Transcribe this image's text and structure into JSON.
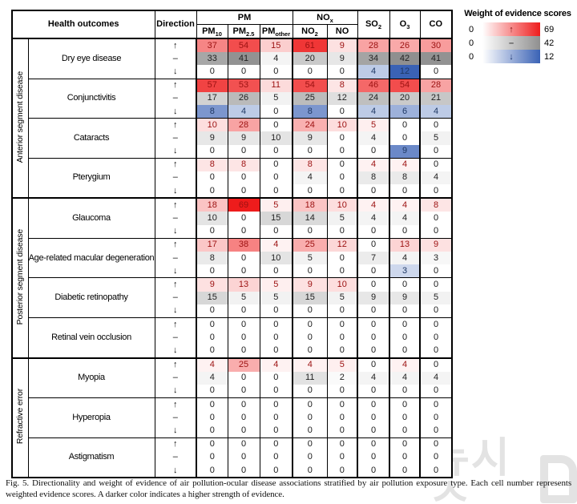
{
  "legend": {
    "title": "Weight of evidence scores"
  },
  "caption": {
    "text": "Fig. 5. Directionality and weight of evidence of air pollution-ocular disease associations stratified by air pollution exposure type. Each cell number represents weighted evidence scores. A darker color indicates a higher strength of evidence."
  },
  "watermark": {
    "text": "뉴시스"
  },
  "table": {
    "header": {
      "outcomes": "Health outcomes",
      "direction": "Direction",
      "groups": [
        {
          "base": "PM",
          "sub": "",
          "span": 3
        },
        {
          "base": "NO",
          "sub": "x",
          "span": 2
        }
      ],
      "subcols": [
        {
          "base": "PM",
          "sub": "10"
        },
        {
          "base": "PM",
          "sub": "2.5"
        },
        {
          "base": "PM",
          "sub": "other"
        },
        {
          "base": "NO",
          "sub": "2"
        },
        {
          "base": "NO",
          "sub": ""
        }
      ],
      "singles": [
        {
          "base": "SO",
          "sub": "2"
        },
        {
          "base": "O",
          "sub": "3"
        },
        {
          "base": "CO",
          "sub": ""
        }
      ]
    }
  },
  "chart_data": {
    "type": "heatmap",
    "title": "Directionality and weight of evidence of air pollution-ocular disease associations stratified by air pollution exposure type",
    "columns": [
      "PM10",
      "PM2.5",
      "PMother",
      "NO2",
      "NO",
      "SO2",
      "O3",
      "CO"
    ],
    "directions": [
      {
        "id": "up",
        "symbol": "↑",
        "min": 0,
        "max": 69,
        "color": "#ee1c1c",
        "text_color": "#9c1111",
        "symbol_color": "#7c0d0d"
      },
      {
        "id": "mid",
        "symbol": "–",
        "min": 0,
        "max": 42,
        "color": "#8f8f8f",
        "text_color": "#222222",
        "symbol_color": "#444444"
      },
      {
        "id": "down",
        "symbol": "↓",
        "min": 0,
        "max": 12,
        "color": "#3a62b5",
        "text_color": "#1f3864",
        "symbol_color": "#17306b"
      }
    ],
    "groups": [
      {
        "label": "Anterior segment disease",
        "diseases": [
          {
            "name": "Dry eye disease",
            "values": {
              "up": [
                37,
                54,
                15,
                61,
                9,
                28,
                26,
                30
              ],
              "mid": [
                33,
                41,
                4,
                20,
                9,
                34,
                42,
                41
              ],
              "down": [
                0,
                0,
                0,
                0,
                0,
                4,
                12,
                0
              ]
            }
          },
          {
            "name": "Conjunctivitis",
            "values": {
              "up": [
                57,
                53,
                11,
                54,
                8,
                46,
                54,
                28
              ],
              "mid": [
                17,
                26,
                5,
                25,
                12,
                24,
                20,
                21
              ],
              "down": [
                8,
                4,
                0,
                8,
                0,
                4,
                6,
                4
              ]
            }
          },
          {
            "name": "Cataracts",
            "values": {
              "up": [
                10,
                28,
                0,
                24,
                10,
                5,
                0,
                0
              ],
              "mid": [
                9,
                9,
                10,
                9,
                0,
                4,
                0,
                5
              ],
              "down": [
                0,
                0,
                0,
                0,
                0,
                0,
                9,
                0
              ]
            }
          },
          {
            "name": "Pterygium",
            "values": {
              "up": [
                8,
                8,
                0,
                8,
                0,
                4,
                4,
                0
              ],
              "mid": [
                0,
                0,
                0,
                4,
                0,
                8,
                8,
                4
              ],
              "down": [
                0,
                0,
                0,
                0,
                0,
                0,
                0,
                0
              ]
            }
          }
        ]
      },
      {
        "label": "Posterior segment disease",
        "diseases": [
          {
            "name": "Glaucoma",
            "values": {
              "up": [
                18,
                69,
                5,
                18,
                10,
                4,
                4,
                8
              ],
              "mid": [
                10,
                0,
                15,
                14,
                5,
                4,
                4,
                0
              ],
              "down": [
                0,
                0,
                0,
                0,
                0,
                0,
                0,
                0
              ]
            }
          },
          {
            "name": "Age-related macular degeneration",
            "values": {
              "up": [
                17,
                38,
                4,
                25,
                12,
                0,
                13,
                9
              ],
              "mid": [
                8,
                0,
                10,
                5,
                0,
                7,
                4,
                3
              ],
              "down": [
                0,
                0,
                0,
                0,
                0,
                0,
                3,
                0
              ]
            }
          },
          {
            "name": "Diabetic retinopathy",
            "values": {
              "up": [
                9,
                13,
                5,
                9,
                10,
                0,
                0,
                0
              ],
              "mid": [
                15,
                5,
                5,
                15,
                5,
                9,
                9,
                5
              ],
              "down": [
                0,
                0,
                0,
                0,
                0,
                0,
                0,
                0
              ]
            }
          },
          {
            "name": "Retinal vein occlusion",
            "values": {
              "up": [
                0,
                0,
                0,
                0,
                0,
                0,
                0,
                0
              ],
              "mid": [
                0,
                0,
                0,
                0,
                0,
                0,
                0,
                0
              ],
              "down": [
                0,
                0,
                0,
                0,
                0,
                0,
                0,
                0
              ]
            }
          }
        ]
      },
      {
        "label": "Refractive error",
        "diseases": [
          {
            "name": "Myopia",
            "values": {
              "up": [
                4,
                25,
                4,
                4,
                5,
                0,
                4,
                0
              ],
              "mid": [
                4,
                0,
                0,
                11,
                2,
                4,
                4,
                4
              ],
              "down": [
                0,
                0,
                0,
                0,
                0,
                0,
                0,
                0
              ]
            }
          },
          {
            "name": "Hyperopia",
            "values": {
              "up": [
                0,
                0,
                0,
                0,
                0,
                0,
                0,
                0
              ],
              "mid": [
                0,
                0,
                0,
                0,
                0,
                0,
                0,
                0
              ],
              "down": [
                0,
                0,
                0,
                0,
                0,
                0,
                0,
                0
              ]
            }
          },
          {
            "name": "Astigmatism",
            "values": {
              "up": [
                0,
                0,
                0,
                0,
                0,
                0,
                0,
                0
              ],
              "mid": [
                0,
                0,
                0,
                0,
                0,
                0,
                0,
                0
              ],
              "down": [
                0,
                0,
                0,
                0,
                0,
                0,
                0,
                0
              ]
            }
          }
        ]
      }
    ]
  }
}
